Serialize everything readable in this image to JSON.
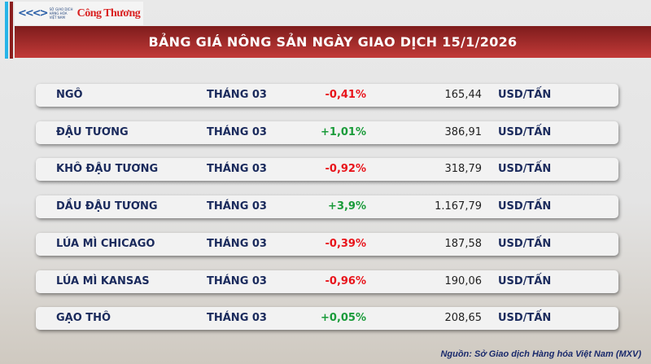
{
  "header": {
    "logo_org": "SỞ GIAO DỊCH HÀNG HÓA VIỆT NAM",
    "logo_brand": "Công Thương",
    "title": "BẢNG GIÁ NÔNG SẢN NGÀY GIAO DỊCH 15/1/2026"
  },
  "colors": {
    "negative": "#e8141b",
    "positive": "#1a9b3a",
    "title_bar": "#b02e2e"
  },
  "rows": [
    {
      "name": "NGÔ",
      "month": "THÁNG 03",
      "change": "-0,41%",
      "price": "165,44",
      "unit": "USD/TẤN"
    },
    {
      "name": "ĐẬU TƯƠNG",
      "month": "THÁNG 03",
      "change": "+1,01%",
      "price": "386,91",
      "unit": "USD/TẤN"
    },
    {
      "name": "KHÔ ĐẬU TƯƠNG",
      "month": "THÁNG 03",
      "change": "-0,92%",
      "price": "318,79",
      "unit": "USD/TẤN"
    },
    {
      "name": "DẦU ĐẬU TƯƠNG",
      "month": "THÁNG 03",
      "change": "+3,9%",
      "price": "1.167,79",
      "unit": "USD/TẤN"
    },
    {
      "name": "LÚA MÌ CHICAGO",
      "month": "THÁNG 03",
      "change": "-0,39%",
      "price": "187,58",
      "unit": "USD/TẤN"
    },
    {
      "name": "LÚA MÌ KANSAS",
      "month": "THÁNG 03",
      "change": "-0,96%",
      "price": "190,06",
      "unit": "USD/TẤN"
    },
    {
      "name": "GẠO THÔ",
      "month": "THÁNG 03",
      "change": "+0,05%",
      "price": "208,65",
      "unit": "USD/TẤN"
    }
  ],
  "footer": {
    "source": "Nguồn: Sở Giao dịch Hàng hóa Việt Nam (MXV)"
  }
}
